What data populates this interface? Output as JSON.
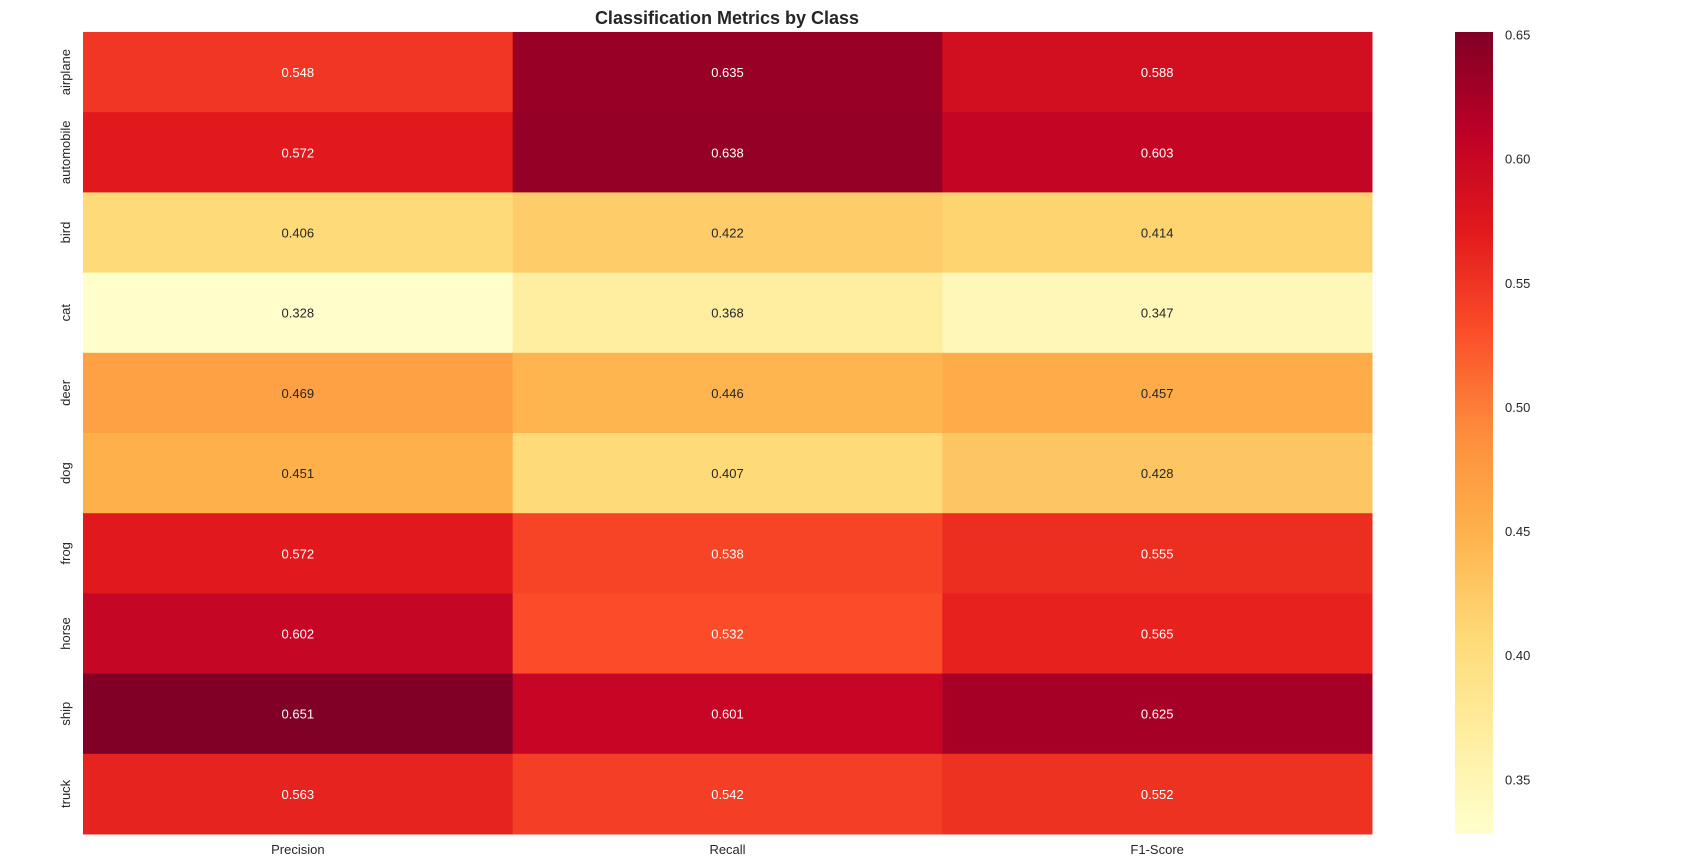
{
  "chart_data": {
    "type": "heatmap",
    "title": "Classification Metrics by Class",
    "xlabel": "",
    "ylabel": "",
    "x_categories": [
      "Precision",
      "Recall",
      "F1-Score"
    ],
    "y_categories": [
      "airplane",
      "automobile",
      "bird",
      "cat",
      "deer",
      "dog",
      "frog",
      "horse",
      "ship",
      "truck"
    ],
    "values": [
      [
        0.548,
        0.635,
        0.588
      ],
      [
        0.572,
        0.638,
        0.603
      ],
      [
        0.406,
        0.422,
        0.414
      ],
      [
        0.328,
        0.368,
        0.347
      ],
      [
        0.469,
        0.446,
        0.457
      ],
      [
        0.451,
        0.407,
        0.428
      ],
      [
        0.572,
        0.538,
        0.555
      ],
      [
        0.602,
        0.532,
        0.565
      ],
      [
        0.651,
        0.601,
        0.625
      ],
      [
        0.563,
        0.542,
        0.552
      ]
    ],
    "value_labels": [
      [
        "0.548",
        "0.635",
        "0.588"
      ],
      [
        "0.572",
        "0.638",
        "0.603"
      ],
      [
        "0.406",
        "0.422",
        "0.414"
      ],
      [
        "0.328",
        "0.368",
        "0.347"
      ],
      [
        "0.469",
        "0.446",
        "0.457"
      ],
      [
        "0.451",
        "0.407",
        "0.428"
      ],
      [
        "0.572",
        "0.538",
        "0.555"
      ],
      [
        "0.602",
        "0.532",
        "0.565"
      ],
      [
        "0.651",
        "0.601",
        "0.625"
      ],
      [
        "0.563",
        "0.542",
        "0.552"
      ]
    ],
    "colormap": "YlOrRd",
    "colormap_stops": [
      "#ffffcc",
      "#ffeda0",
      "#fed976",
      "#feb24c",
      "#fd8d3c",
      "#fc4e2a",
      "#e31a1c",
      "#bd0026",
      "#800026"
    ],
    "vmin": 0.328,
    "vmax": 0.651,
    "colorbar_ticks": [
      0.35,
      0.4,
      0.45,
      0.5,
      0.55,
      0.6,
      0.65
    ],
    "colorbar_tick_labels": [
      "0.35",
      "0.40",
      "0.45",
      "0.50",
      "0.55",
      "0.60",
      "0.65"
    ],
    "colorbar_position": "right",
    "grid": false
  }
}
